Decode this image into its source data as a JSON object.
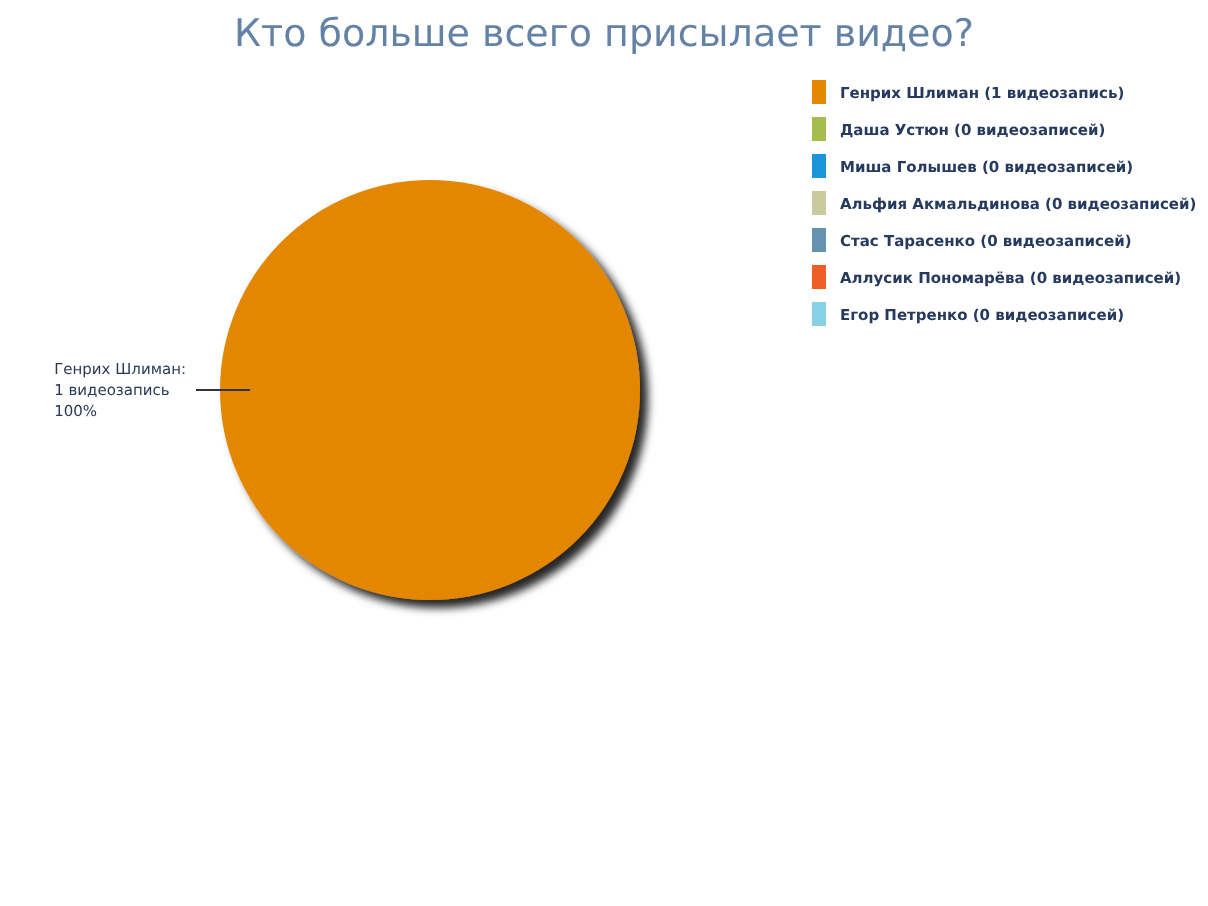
{
  "chart_data": {
    "type": "pie",
    "title": "Кто больше всего присылает видео?",
    "categories": [
      "Генрих Шлиман (1 видеозапись)",
      "Даша Устюн (0 видеозаписей)",
      "Миша Голышев (0 видеозаписей)",
      "Альфия Акмальдинова (0 видеозаписей)",
      "Стас Тарасенко (0 видеозаписей)",
      "Аллусик Пономарёва (0 видеозаписей)",
      "Егор Петренко (0 видеозаписей)"
    ],
    "values": [
      1,
      0,
      0,
      0,
      0,
      0,
      0
    ],
    "colors": [
      "#e48701",
      "#a5bc4e",
      "#1b95d9",
      "#caca9e",
      "#6693b0",
      "#f05e27",
      "#86d1e4"
    ],
    "value_labels": [
      "Генрих Шлиман:\n1 видеозапись\n100%",
      null,
      null,
      null,
      null,
      null,
      null
    ],
    "legend": "top right"
  }
}
